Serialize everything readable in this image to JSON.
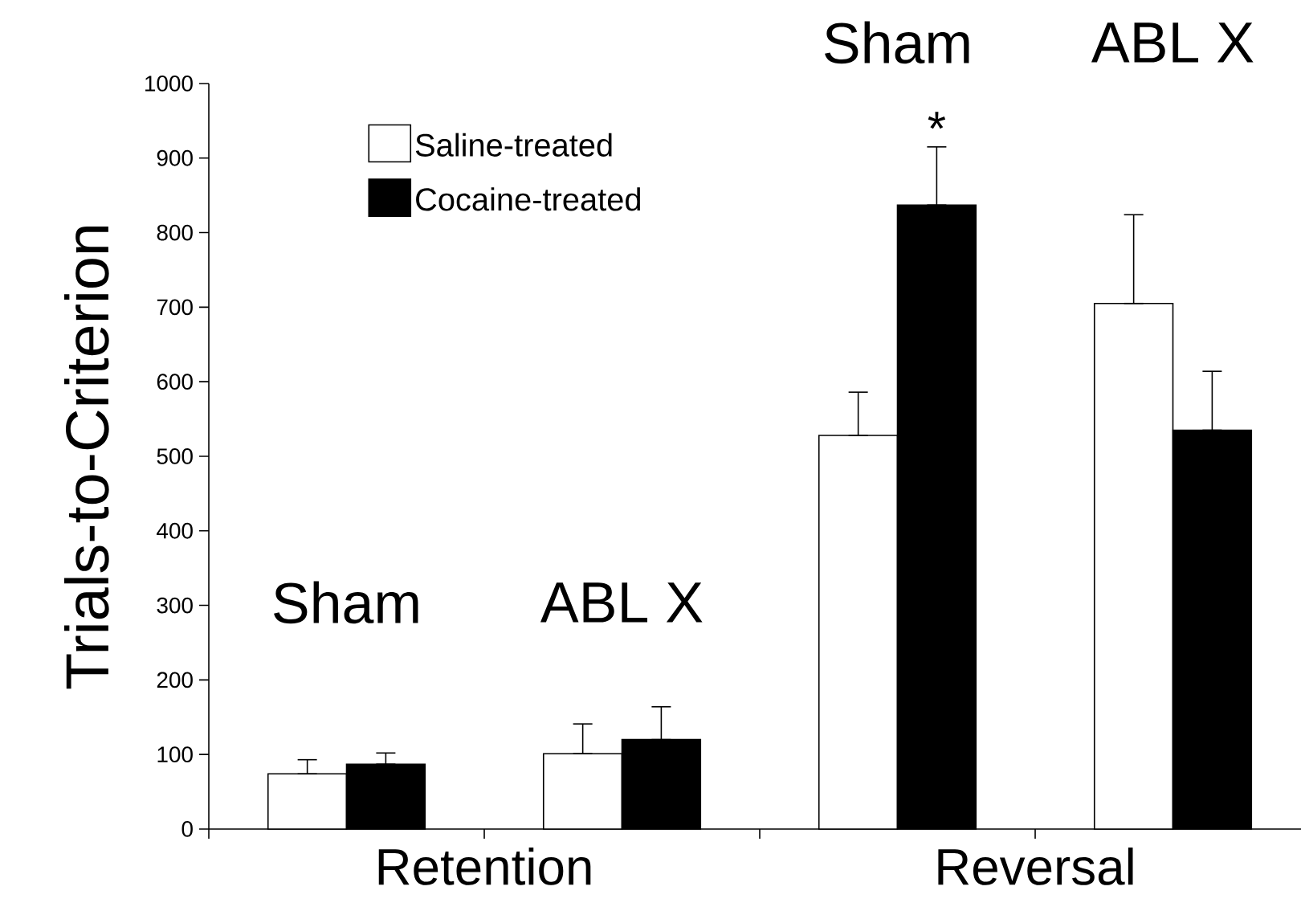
{
  "chart_data": {
    "type": "bar",
    "ylabel": "Trials-to-Criterion",
    "categories": [
      "Sham",
      "ABL X",
      "Sham",
      "ABL X"
    ],
    "series": [
      {
        "name": "Saline-treated",
        "color": "#ffffff",
        "values": [
          74,
          101,
          528,
          705
        ],
        "errors": [
          [
            74,
            93
          ],
          [
            101,
            141
          ],
          [
            528,
            586
          ],
          [
            705,
            824
          ]
        ]
      },
      {
        "name": "Cocaine-treated",
        "color": "#000000",
        "values": [
          87,
          120,
          837,
          535
        ],
        "errors": [
          [
            87,
            102
          ],
          [
            120,
            164
          ],
          [
            837,
            915
          ],
          [
            535,
            614
          ]
        ],
        "value_labels": [
          null,
          null,
          "*",
          null
        ]
      }
    ],
    "annotations": [
      "Retention",
      "Reversal"
    ],
    "ylim": [
      0,
      1000
    ],
    "yticks": [
      0,
      100,
      200,
      300,
      400,
      500,
      600,
      700,
      800,
      900,
      1000
    ],
    "legend": "top left",
    "grid": false
  }
}
